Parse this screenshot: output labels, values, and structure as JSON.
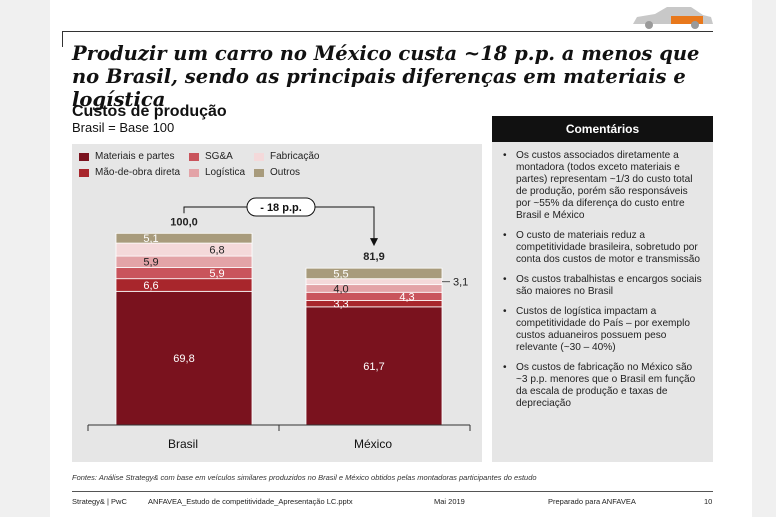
{
  "title": "Produzir um carro no México custa ~18 p.p. a menos que no Brasil, sendo as principais diferenças em materiais e logística",
  "subtitle": "Custos de produção",
  "base_note": "Brasil = Base 100",
  "legend": {
    "materiais": "Materiais e partes",
    "mao_de_obra": "Mão-de-obra direta",
    "sga": "SG&A",
    "logistica": "Logística",
    "fabricacao": "Fabricação",
    "outros": "Outros"
  },
  "colors": {
    "materiais": "#7a121e",
    "mao_de_obra": "#a8262c",
    "sga": "#c9545c",
    "logistica": "#e3a3a7",
    "fabricacao": "#f4d9da",
    "outros": "#a89b7c"
  },
  "chart_data": {
    "type": "bar",
    "stacked": true,
    "title": "Custos de produção",
    "subtitle": "Brasil = Base 100",
    "categories": [
      "Brasil",
      "México"
    ],
    "totals": [
      100.0,
      81.9
    ],
    "total_labels": [
      "100,0",
      "81,9"
    ],
    "difference_label": "- 18 p.p.",
    "ylim": [
      0,
      110
    ],
    "series": [
      {
        "name": "Materiais e partes",
        "key": "materiais",
        "values": [
          69.8,
          61.7
        ],
        "labels": [
          "69,8",
          "61,7"
        ]
      },
      {
        "name": "Mão-de-obra direta",
        "key": "mao_de_obra",
        "values": [
          6.6,
          3.3
        ],
        "labels": [
          "6,6",
          "3,3"
        ]
      },
      {
        "name": "SG&A",
        "key": "sga",
        "values": [
          5.9,
          4.3
        ],
        "labels": [
          "5,9",
          "4,3"
        ]
      },
      {
        "name": "Logística",
        "key": "logistica",
        "values": [
          5.9,
          4.0
        ],
        "labels": [
          "5,9",
          "4,0"
        ]
      },
      {
        "name": "Fabricação",
        "key": "fabricacao",
        "values": [
          6.8,
          3.1
        ],
        "labels": [
          "6,8",
          "3,1"
        ]
      },
      {
        "name": "Outros",
        "key": "outros",
        "values": [
          5.1,
          5.5
        ],
        "labels": [
          "5,1",
          "5,5"
        ]
      }
    ]
  },
  "comments": {
    "heading": "Comentários",
    "items": [
      "Os custos associados diretamente a montadora (todos exceto materiais e partes) representam ~1/3 do custo total de produção, porém são responsáveis por ~55% da diferença do custo entre Brasil e México",
      "O custo de materiais reduz a competitividade brasileira, sobretudo por conta dos custos de motor e transmissão",
      "Os custos trabalhistas e encargos sociais são maiores no Brasil",
      "Custos de logística impactam a competitividade do País – por exemplo custos aduaneiros possuem peso relevante (~30 – 40%)",
      "Os custos de fabricação no México são ~3 p.p. menores que o Brasil em função da escala de produção e taxas de depreciação"
    ]
  },
  "source": "Fontes: Análise Strategy& com base em veículos similares produzidos no Brasil e México obtidos pelas montadoras participantes do estudo",
  "footer": {
    "brand": "Strategy& | PwC",
    "file": "ANFAVEA_Estudo de competitividade_Apresentação LC.pptx",
    "date": "Mai 2019",
    "prepared": "Preparado para ANFAVEA",
    "page": "10"
  }
}
